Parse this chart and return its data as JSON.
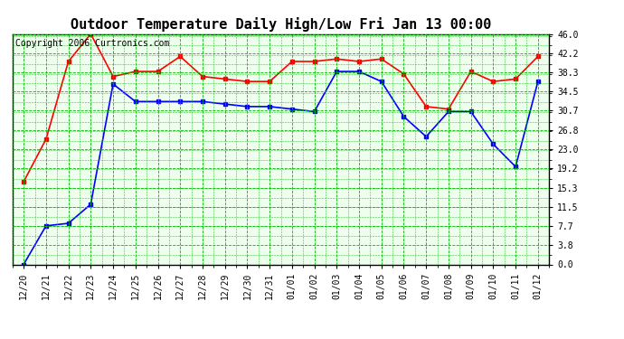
{
  "title": "Outdoor Temperature Daily High/Low Fri Jan 13 00:00",
  "copyright": "Copyright 2006 Curtronics.com",
  "x_labels": [
    "12/20",
    "12/21",
    "12/22",
    "12/23",
    "12/24",
    "12/25",
    "12/26",
    "12/27",
    "12/28",
    "12/29",
    "12/30",
    "12/31",
    "01/01",
    "01/02",
    "01/03",
    "01/04",
    "01/05",
    "01/06",
    "01/07",
    "01/08",
    "01/09",
    "01/10",
    "01/11",
    "01/12"
  ],
  "high_temps": [
    16.5,
    25.0,
    40.5,
    46.0,
    37.5,
    38.5,
    38.5,
    41.5,
    37.5,
    37.0,
    36.5,
    36.5,
    40.5,
    40.5,
    41.0,
    40.5,
    41.0,
    38.0,
    31.5,
    31.0,
    38.5,
    36.5,
    37.0,
    41.5
  ],
  "low_temps": [
    0.0,
    7.7,
    8.2,
    12.0,
    36.0,
    32.5,
    32.5,
    32.5,
    32.5,
    32.0,
    31.5,
    31.5,
    31.0,
    30.5,
    38.5,
    38.5,
    36.5,
    29.5,
    25.5,
    30.5,
    30.5,
    24.0,
    19.5,
    36.5
  ],
  "high_color": "#ff0000",
  "low_color": "#0000ff",
  "bg_color": "#ffffff",
  "plot_bg_color": "#eeffee",
  "grid_color": "#00bb00",
  "border_color": "#000000",
  "title_fontsize": 11,
  "copyright_fontsize": 7,
  "tick_fontsize": 7,
  "ytick_values": [
    0.0,
    3.8,
    7.7,
    11.5,
    15.3,
    19.2,
    23.0,
    26.8,
    30.7,
    34.5,
    38.3,
    42.2,
    46.0
  ],
  "ylim": [
    0.0,
    46.0
  ],
  "marker": "s",
  "markersize": 3,
  "linewidth": 1.2
}
